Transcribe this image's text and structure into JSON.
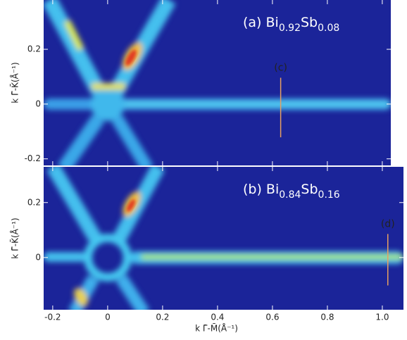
{
  "chart_data": [
    {
      "type": "heatmap",
      "title_parts": [
        "(a) Bi",
        "0.92",
        "Sb",
        "0.08"
      ],
      "ylabel": "k Γ̄-K̄(Å⁻¹)",
      "xlim": [
        -0.233,
        1.031
      ],
      "ylim": [
        -0.224,
        0.38
      ],
      "xticks": [
        -0.2,
        0,
        0.2,
        0.4,
        0.6,
        0.8,
        {
          "value": 1,
          "label": "1.0"
        }
      ],
      "xtick_labels": false,
      "yticks": [
        -0.2,
        0,
        0.2
      ],
      "annotations": [
        {
          "text": "(c)",
          "x": 0.63,
          "color": "#e8a060"
        }
      ]
    },
    {
      "type": "heatmap",
      "title_parts": [
        "(b) Bi",
        "0.84",
        "Sb",
        "0.16"
      ],
      "ylabel": "k Γ̄-K̄(Å⁻¹)",
      "xlabel": "k Γ̄-M̄(Å⁻¹)",
      "xlim": [
        -0.233,
        1.077
      ],
      "ylim": [
        -0.19,
        0.33
      ],
      "xticks": [
        -0.2,
        0,
        0.2,
        0.4,
        0.6,
        0.8,
        {
          "value": 1,
          "label": "1.0"
        }
      ],
      "xtick_labels": true,
      "yticks": [
        0,
        0.2
      ],
      "annotations": [
        {
          "text": "(d)",
          "x": 1.02,
          "color": "#e8a060"
        }
      ]
    }
  ]
}
